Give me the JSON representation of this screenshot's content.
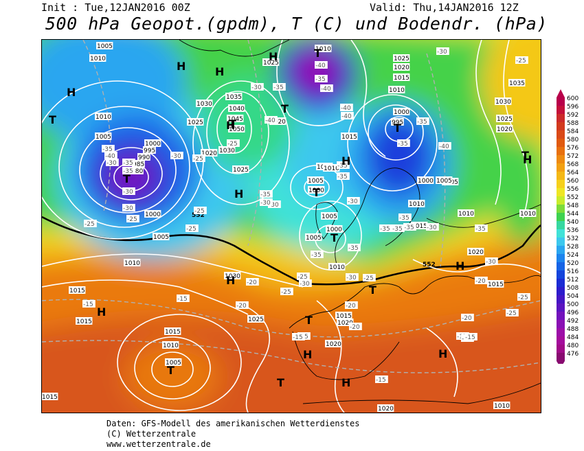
{
  "header": {
    "init": "Init : Tue,12JAN2016 00Z",
    "valid": "Valid: Thu,14JAN2016 12Z",
    "title": "500 hPa Geopot.(gpdm), T (C) und Bodendr. (hPa)"
  },
  "legend": {
    "values": [
      "600",
      "596",
      "592",
      "588",
      "584",
      "580",
      "576",
      "572",
      "568",
      "564",
      "560",
      "556",
      "552",
      "548",
      "544",
      "540",
      "536",
      "532",
      "528",
      "524",
      "520",
      "516",
      "512",
      "508",
      "504",
      "500",
      "496",
      "492",
      "488",
      "484",
      "480",
      "476"
    ],
    "colors": [
      "#b8004a",
      "#c4103a",
      "#cc2a2a",
      "#d23a1e",
      "#da4a18",
      "#e05a10",
      "#e8700e",
      "#ee8a10",
      "#f2a012",
      "#f4b816",
      "#f6d01c",
      "#eee624",
      "#c8ec2c",
      "#7cdc3a",
      "#3ed250",
      "#36d8a0",
      "#40e2d8",
      "#3cc8ee",
      "#2aa6f0",
      "#1c84ee",
      "#1664e6",
      "#1444dc",
      "#1a2cd4",
      "#2c1ccc",
      "#4416c4",
      "#5a14c0",
      "#7212bc",
      "#8a10b4",
      "#9c0ea8",
      "#a40c9c",
      "#a00a88",
      "#880a70"
    ]
  },
  "map": {
    "isobar_labels": [
      {
        "text": "1005",
        "pos": "nw"
      },
      {
        "text": "1010",
        "pos": "nw"
      },
      {
        "text": "1010",
        "pos": "north"
      },
      {
        "text": "1025",
        "pos": "north"
      },
      {
        "text": "1025",
        "pos": "north"
      },
      {
        "text": "1020",
        "pos": "north"
      },
      {
        "text": "1015",
        "pos": "north"
      },
      {
        "text": "1010",
        "pos": "north"
      },
      {
        "text": "1035",
        "pos": "ne"
      },
      {
        "text": "1030",
        "pos": "ne"
      },
      {
        "text": "1025",
        "pos": "ne"
      },
      {
        "text": "1020",
        "pos": "ne"
      },
      {
        "text": "1035",
        "pos": "n-atl"
      },
      {
        "text": "1030",
        "pos": "n-atl"
      },
      {
        "text": "1040",
        "pos": "n-atl"
      },
      {
        "text": "1045",
        "pos": "n-atl"
      },
      {
        "text": "1050",
        "pos": "n-atl"
      },
      {
        "text": "1020",
        "pos": "n-atl"
      },
      {
        "text": "1025",
        "pos": "n-atl"
      },
      {
        "text": "1030",
        "pos": "n-atl"
      },
      {
        "text": "1020",
        "pos": "n-atl"
      },
      {
        "text": "1025",
        "pos": "n-atl"
      },
      {
        "text": "1010",
        "pos": "w"
      },
      {
        "text": "1005",
        "pos": "w"
      },
      {
        "text": "1000",
        "pos": "w"
      },
      {
        "text": "995",
        "pos": "w"
      },
      {
        "text": "990",
        "pos": "w"
      },
      {
        "text": "985",
        "pos": "w"
      },
      {
        "text": "980",
        "pos": "w"
      },
      {
        "text": "1000",
        "pos": "w"
      },
      {
        "text": "1005",
        "pos": "w"
      },
      {
        "text": "1010",
        "pos": "w"
      },
      {
        "text": "1015",
        "pos": "sw"
      },
      {
        "text": "1010",
        "pos": "c"
      },
      {
        "text": "1005",
        "pos": "c"
      },
      {
        "text": "1000",
        "pos": "c"
      },
      {
        "text": "1015",
        "pos": "c"
      },
      {
        "text": "1010",
        "pos": "c"
      },
      {
        "text": "1005",
        "pos": "c"
      },
      {
        "text": "1000",
        "pos": "c"
      },
      {
        "text": "1010",
        "pos": "c"
      },
      {
        "text": "1005",
        "pos": "c"
      },
      {
        "text": "1000",
        "pos": "ne"
      },
      {
        "text": "995",
        "pos": "ne"
      },
      {
        "text": "1005",
        "pos": "ne"
      },
      {
        "text": "1000",
        "pos": "ne"
      },
      {
        "text": "1005",
        "pos": "ne"
      },
      {
        "text": "1010",
        "pos": "e"
      },
      {
        "text": "1015",
        "pos": "e"
      },
      {
        "text": "1010",
        "pos": "e"
      },
      {
        "text": "1010",
        "pos": "e"
      },
      {
        "text": "1020",
        "pos": "e"
      },
      {
        "text": "1015",
        "pos": "e"
      },
      {
        "text": "1030",
        "pos": "s"
      },
      {
        "text": "1025",
        "pos": "s"
      },
      {
        "text": "1015",
        "pos": "s"
      },
      {
        "text": "1020",
        "pos": "s"
      },
      {
        "text": "1015",
        "pos": "sw"
      },
      {
        "text": "1010",
        "pos": "sw"
      },
      {
        "text": "1005",
        "pos": "sw"
      },
      {
        "text": "1015",
        "pos": "s"
      },
      {
        "text": "1020",
        "pos": "s"
      },
      {
        "text": "1020",
        "pos": "s"
      },
      {
        "text": "1010",
        "pos": "s"
      },
      {
        "text": "1015",
        "pos": "sw"
      }
    ],
    "temp_labels": [
      "-35",
      "-40",
      "-30",
      "-35",
      "-35",
      "-30",
      "-25",
      "-30",
      "-40",
      "-35",
      "-40",
      "-40",
      "-30",
      "-35",
      "-40",
      "-35",
      "-35",
      "-30",
      "-35",
      "-30",
      "-25",
      "-25",
      "-25",
      "-30",
      "-30",
      "-25",
      "-25",
      "-35",
      "-40",
      "-35",
      "-40",
      "-35",
      "-35",
      "-35",
      "-35",
      "-30",
      "-35",
      "-35",
      "-30",
      "-25",
      "-20",
      "-25",
      "-30",
      "-25",
      "-20",
      "-20",
      "-20",
      "-15",
      "-15",
      "-15",
      "-15",
      "-20",
      "-20",
      "-15",
      "-15",
      "-15",
      "-15",
      "-25",
      "-30",
      "-30",
      "-35",
      "-25",
      "-25"
    ],
    "isohypse_labels": [
      "552",
      "552"
    ],
    "high_symbol": "H",
    "low_symbol": "T"
  },
  "footer": {
    "line1": "Daten: GFS-Modell des amerikanischen Wetterdienstes",
    "line2": "(C) Wetterzentrale",
    "line3": "www.wetterzentrale.de"
  }
}
